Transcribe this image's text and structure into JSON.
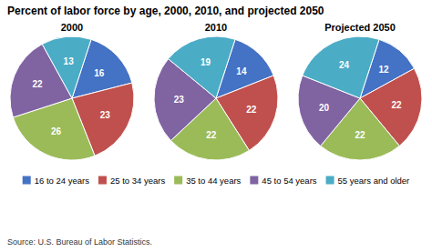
{
  "chart_data": {
    "type": "pie",
    "title": "Percent of labor force by age, 2000, 2010, and projected 2050",
    "categories": [
      "16 to 24 years",
      "25 to 34 years",
      "35 to 44 years",
      "45 to 54 years",
      "55 years and older"
    ],
    "colors": [
      "#4472c4",
      "#c0504d",
      "#9bbb59",
      "#8064a2",
      "#4bacc6"
    ],
    "series": [
      {
        "name": "2000",
        "values": [
          16,
          23,
          26,
          22,
          13
        ]
      },
      {
        "name": "2010",
        "values": [
          14,
          22,
          22,
          23,
          19
        ]
      },
      {
        "name": "Projected 2050",
        "values": [
          12,
          22,
          22,
          20,
          24
        ]
      }
    ],
    "data_labels": true,
    "legend": "bottom",
    "annotations": [
      "Source: U.S. Bureau of Labor Statistics."
    ]
  }
}
